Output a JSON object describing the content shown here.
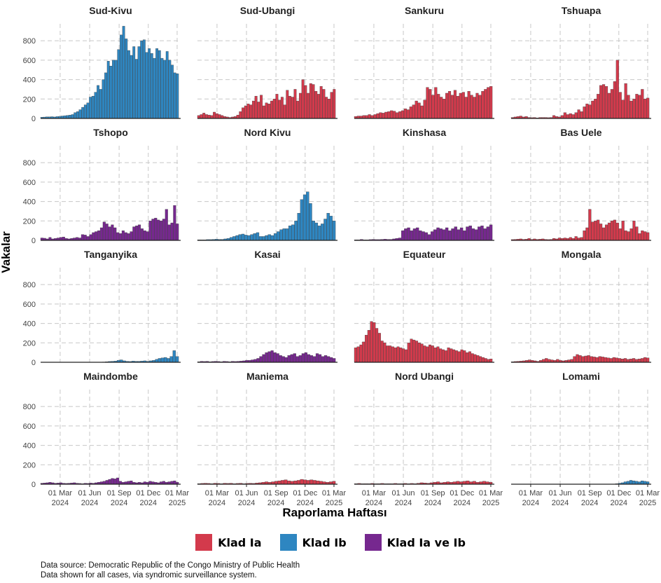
{
  "chart_data": {
    "type": "bar",
    "layout": "small-multiples",
    "facets_rows": 4,
    "facets_cols": 4,
    "ylabel": "Vakalar",
    "xlabel": "Raporlama Haftası",
    "ylim": [
      0,
      960
    ],
    "yticks": [
      "0",
      "200",
      "400",
      "600",
      "800"
    ],
    "xlim": [
      "2023-12-31",
      "2025-03-12"
    ],
    "xticks": [
      {
        "date": "2024-03-01",
        "line1": "01 Mar",
        "line2": "2024"
      },
      {
        "date": "2024-06-01",
        "line1": "01 Jun",
        "line2": "2024"
      },
      {
        "date": "2024-09-01",
        "line1": "01 Sep",
        "line2": "2024"
      },
      {
        "date": "2024-12-01",
        "line1": "01 Dec",
        "line2": "2024"
      },
      {
        "date": "2025-03-01",
        "line1": "01 Mar",
        "line2": "2025"
      }
    ],
    "grid": true,
    "legend_position": "bottom",
    "legend": [
      {
        "key": "Ia",
        "label": "Klad Ia",
        "color": "#D33A4C"
      },
      {
        "key": "Ib",
        "label": "Klad Ib",
        "color": "#2E86C1"
      },
      {
        "key": "Iab",
        "label": "Klad Ia ve Ib",
        "color": "#76288F"
      }
    ],
    "facets": [
      {
        "name": "Sud-Kivu",
        "clade": "Ib",
        "weekly_cases": [
          12,
          14,
          16,
          16,
          18,
          15,
          19,
          21,
          25,
          28,
          31,
          34,
          40,
          60,
          70,
          90,
          115,
          140,
          160,
          220,
          230,
          270,
          340,
          300,
          400,
          470,
          590,
          540,
          600,
          600,
          710,
          860,
          950,
          820,
          700,
          650,
          740,
          610,
          740,
          800,
          810,
          680,
          720,
          670,
          620,
          720,
          700,
          620,
          600,
          690,
          600,
          550,
          470,
          460
        ]
      },
      {
        "name": "Sud-Ubangi",
        "clade": "Ia",
        "weekly_cases": [
          30,
          40,
          55,
          40,
          35,
          30,
          65,
          50,
          40,
          30,
          20,
          15,
          10,
          15,
          20,
          35,
          70,
          110,
          130,
          150,
          140,
          180,
          230,
          170,
          240,
          130,
          160,
          150,
          180,
          200,
          250,
          190,
          220,
          140,
          290,
          230,
          220,
          300,
          180,
          260,
          400,
          340,
          260,
          360,
          350,
          280,
          250,
          330,
          300,
          220,
          200,
          270,
          300
        ]
      },
      {
        "name": "Sankuru",
        "clade": "Ia",
        "weekly_cases": [
          20,
          25,
          25,
          30,
          30,
          40,
          30,
          40,
          50,
          60,
          55,
          65,
          70,
          80,
          75,
          60,
          70,
          80,
          100,
          90,
          120,
          140,
          180,
          160,
          130,
          190,
          320,
          300,
          240,
          320,
          250,
          220,
          200,
          260,
          280,
          240,
          290,
          230,
          260,
          270,
          220,
          280,
          240,
          220,
          260,
          240,
          280,
          300,
          320,
          330
        ]
      },
      {
        "name": "Tshuapa",
        "clade": "Ia",
        "weekly_cases": [
          10,
          15,
          20,
          25,
          15,
          20,
          10,
          8,
          10,
          5,
          10,
          10,
          10,
          8,
          10,
          30,
          20,
          15,
          30,
          60,
          40,
          50,
          40,
          60,
          90,
          70,
          120,
          150,
          140,
          180,
          200,
          250,
          340,
          350,
          330,
          260,
          300,
          380,
          600,
          270,
          190,
          360,
          240,
          180,
          200,
          250,
          240,
          300,
          200,
          210
        ]
      },
      {
        "name": "Tshopo",
        "clade": "Iab",
        "weekly_cases": [
          25,
          22,
          15,
          30,
          15,
          20,
          25,
          30,
          35,
          20,
          15,
          20,
          25,
          30,
          25,
          60,
          55,
          40,
          60,
          80,
          90,
          100,
          130,
          190,
          170,
          140,
          160,
          130,
          80,
          70,
          100,
          80,
          70,
          90,
          140,
          150,
          160,
          120,
          100,
          90,
          200,
          220,
          230,
          210,
          200,
          220,
          320,
          160,
          180,
          360,
          170
        ]
      },
      {
        "name": "Nord Kivu",
        "clade": "Ib",
        "weekly_cases": [
          5,
          5,
          5,
          8,
          8,
          10,
          12,
          10,
          10,
          15,
          20,
          30,
          40,
          50,
          60,
          65,
          55,
          50,
          60,
          70,
          80,
          40,
          40,
          50,
          60,
          50,
          70,
          90,
          110,
          120,
          120,
          150,
          160,
          200,
          280,
          420,
          470,
          500,
          380,
          200,
          180,
          150,
          170,
          220,
          280,
          250,
          200
        ]
      },
      {
        "name": "Kinshasa",
        "clade": "Iab",
        "weekly_cases": [
          5,
          5,
          10,
          5,
          5,
          8,
          10,
          8,
          8,
          10,
          12,
          10,
          10,
          15,
          20,
          25,
          100,
          120,
          130,
          100,
          120,
          130,
          100,
          90,
          80,
          60,
          90,
          110,
          130,
          120,
          110,
          130,
          100,
          120,
          140,
          110,
          130,
          100,
          140,
          150,
          120,
          110,
          140,
          150,
          120,
          140,
          160
        ]
      },
      {
        "name": "Bas Uele",
        "clade": "Ia",
        "weekly_cases": [
          8,
          10,
          12,
          15,
          10,
          12,
          20,
          10,
          15,
          10,
          12,
          15,
          10,
          8,
          10,
          20,
          15,
          25,
          20,
          25,
          20,
          30,
          20,
          40,
          25,
          30,
          100,
          130,
          320,
          190,
          200,
          210,
          170,
          130,
          160,
          180,
          200,
          210,
          180,
          120,
          200,
          100,
          90,
          120,
          200,
          140,
          70,
          100,
          90,
          80
        ]
      },
      {
        "name": "Tanganyika",
        "clade": "Ib",
        "weekly_cases": [
          0,
          0,
          0,
          0,
          0,
          0,
          0,
          0,
          0,
          0,
          0,
          0,
          0,
          0,
          0,
          0,
          0,
          0,
          0,
          0,
          2,
          3,
          5,
          8,
          10,
          12,
          20,
          25,
          15,
          10,
          8,
          12,
          10,
          10,
          12,
          15,
          10,
          15,
          20,
          30,
          40,
          45,
          50,
          40,
          60,
          120,
          60
        ]
      },
      {
        "name": "Kasai",
        "clade": "Iab",
        "weekly_cases": [
          5,
          10,
          8,
          10,
          5,
          8,
          10,
          8,
          5,
          10,
          8,
          5,
          10,
          8,
          10,
          12,
          15,
          20,
          20,
          25,
          30,
          40,
          60,
          80,
          100,
          110,
          120,
          100,
          90,
          70,
          60,
          50,
          70,
          80,
          90,
          60,
          70,
          90,
          100,
          80,
          70,
          60,
          90,
          80,
          60,
          70,
          60,
          50,
          40
        ]
      },
      {
        "name": "Equateur",
        "clade": "Ia",
        "weekly_cases": [
          150,
          160,
          180,
          210,
          280,
          330,
          420,
          410,
          350,
          300,
          220,
          200,
          170,
          170,
          160,
          150,
          160,
          150,
          140,
          130,
          200,
          240,
          230,
          220,
          200,
          190,
          170,
          160,
          180,
          170,
          150,
          160,
          140,
          130,
          120,
          150,
          140,
          130,
          120,
          110,
          130,
          120,
          100,
          110,
          90,
          80,
          70,
          60,
          50,
          40,
          30,
          35
        ]
      },
      {
        "name": "Mongala",
        "clade": "Ia",
        "weekly_cases": [
          5,
          8,
          10,
          12,
          15,
          20,
          25,
          20,
          15,
          10,
          20,
          30,
          40,
          30,
          25,
          20,
          30,
          20,
          15,
          20,
          25,
          30,
          60,
          80,
          70,
          60,
          65,
          70,
          60,
          55,
          50,
          60,
          55,
          50,
          45,
          40,
          50,
          45,
          40,
          35,
          40,
          30,
          35,
          40,
          30,
          35,
          40,
          50,
          45
        ]
      },
      {
        "name": "Maindombe",
        "clade": "Iab",
        "weekly_cases": [
          10,
          12,
          15,
          20,
          15,
          10,
          12,
          15,
          10,
          8,
          10,
          12,
          15,
          10,
          8,
          5,
          10,
          8,
          12,
          10,
          15,
          20,
          25,
          30,
          40,
          50,
          60,
          55,
          65,
          30,
          20,
          25,
          30,
          35,
          20,
          15,
          20,
          15,
          25,
          20,
          30,
          25,
          20,
          15,
          25,
          30,
          20,
          25,
          30,
          35,
          20
        ]
      },
      {
        "name": "Maniema",
        "clade": "Ia",
        "weekly_cases": [
          5,
          8,
          10,
          8,
          5,
          10,
          8,
          5,
          10,
          8,
          10,
          5,
          8,
          10,
          5,
          8,
          10,
          8,
          12,
          15,
          20,
          25,
          20,
          25,
          30,
          35,
          40,
          45,
          35,
          30,
          35,
          40,
          50,
          45,
          40,
          45,
          40,
          35,
          30,
          25,
          20,
          25,
          30
        ]
      },
      {
        "name": "Nord Ubangi",
        "clade": "Ia",
        "weekly_cases": [
          5,
          8,
          5,
          6,
          5,
          8,
          5,
          6,
          8,
          5,
          6,
          5,
          8,
          5,
          6,
          8,
          5,
          8,
          6,
          10,
          15,
          12,
          10,
          15,
          20,
          25,
          15,
          20,
          25,
          20,
          25,
          30,
          25,
          30,
          35,
          25,
          30,
          20,
          25,
          30,
          25,
          20
        ]
      },
      {
        "name": "Lomami",
        "clade": "Ib",
        "weekly_cases": [
          0,
          0,
          0,
          0,
          0,
          0,
          0,
          0,
          0,
          0,
          0,
          0,
          0,
          0,
          0,
          0,
          0,
          0,
          0,
          0,
          0,
          0,
          0,
          0,
          0,
          0,
          0,
          0,
          0,
          0,
          0,
          0,
          0,
          0,
          0,
          0,
          0,
          5,
          10,
          15,
          25,
          30,
          40,
          35,
          30,
          25,
          35,
          30,
          25
        ]
      }
    ]
  },
  "caption": {
    "line1": "Data source: Democratic Republic of the Congo Ministry of Public Health",
    "line2": "Data shown for all cases, via syndromic surveillance system."
  }
}
